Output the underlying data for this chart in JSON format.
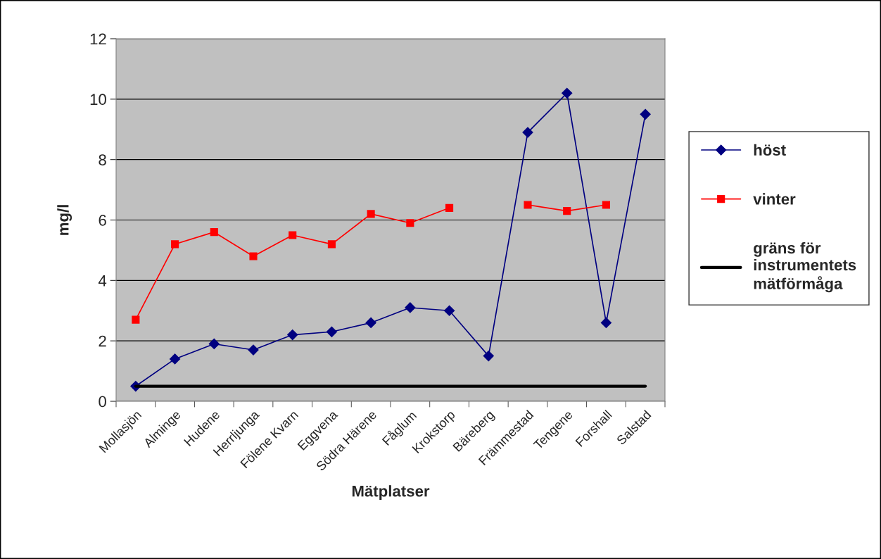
{
  "chart_data": {
    "type": "line",
    "xlabel": "Mätplatser",
    "ylabel": "mg/l",
    "categories": [
      "Mollasjön",
      "Alminge",
      "Hudene",
      "Herrljunga",
      "Fölene Kvarn",
      "Eggvena",
      "Södra Härene",
      "Fåglum",
      "Krokstorp",
      "Bäreberg",
      "Främmestad",
      "Tengene",
      "Forshall",
      "Salstad"
    ],
    "series": [
      {
        "name": "höst",
        "color": "#000080",
        "marker": "diamond",
        "values": [
          0.5,
          1.4,
          1.9,
          1.7,
          2.2,
          2.3,
          2.6,
          3.1,
          3.0,
          1.5,
          8.9,
          10.2,
          2.6,
          9.5
        ]
      },
      {
        "name": "vinter",
        "color": "#ff0000",
        "marker": "square",
        "values": [
          2.7,
          5.2,
          5.6,
          4.8,
          5.5,
          5.2,
          6.2,
          5.9,
          6.4,
          null,
          6.5,
          6.3,
          6.5,
          null
        ]
      },
      {
        "name": "gräns för instrumentets mätförmåga",
        "color": "#000000",
        "marker": "none",
        "values": [
          0.5,
          0.5,
          0.5,
          0.5,
          0.5,
          0.5,
          0.5,
          0.5,
          0.5,
          0.5,
          0.5,
          0.5,
          0.5,
          0.5
        ]
      }
    ],
    "ylim": [
      0,
      12
    ],
    "yticks": [
      0,
      2,
      4,
      6,
      8,
      10,
      12
    ],
    "grid": "y",
    "legend": "right",
    "line_style": "solid"
  }
}
